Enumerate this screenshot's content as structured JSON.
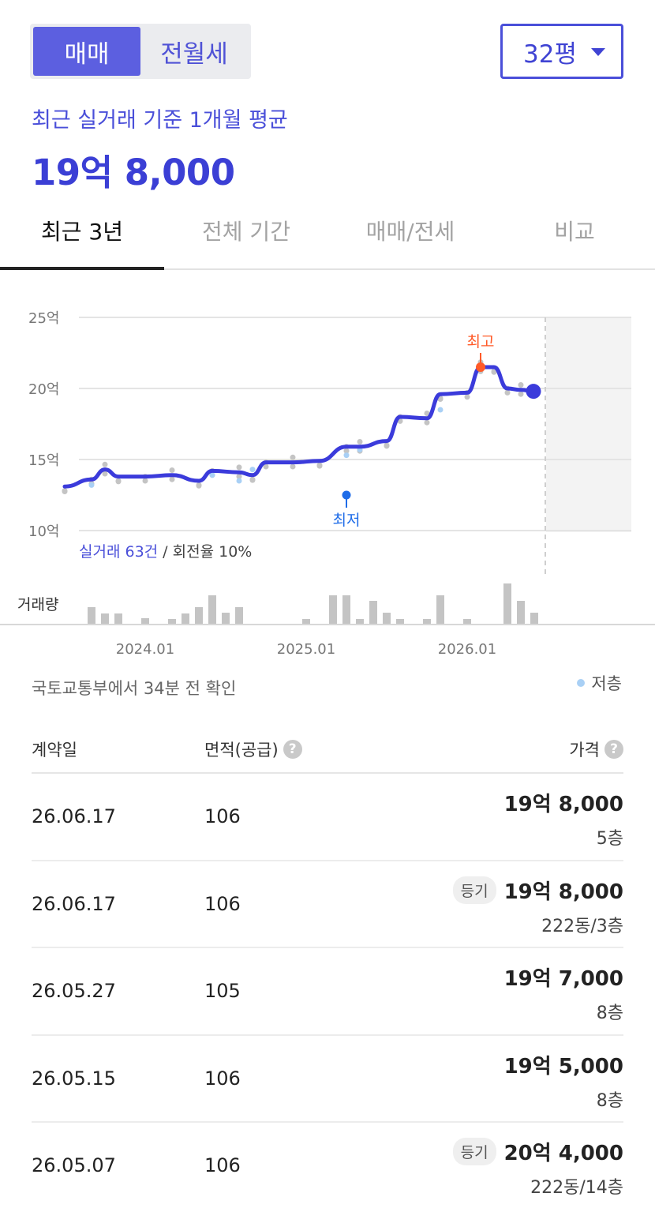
{
  "trade_type": {
    "active": "매매",
    "inactive": "전월세"
  },
  "size_select": {
    "value": "32평"
  },
  "summary": {
    "subtitle": "최근 실거래 기준 1개월 평균",
    "price": "19억 8,000"
  },
  "tabs": [
    {
      "label": "최근 3년",
      "active": true
    },
    {
      "label": "전체 기간",
      "active": false
    },
    {
      "label": "매매/전세",
      "active": false
    },
    {
      "label": "비교",
      "active": false
    }
  ],
  "colors": {
    "accent": "#4a4fd9",
    "line": "#3b3bdb",
    "high": "#ff5a28",
    "low": "#1e6ce8",
    "low_floor": "#a9d0f5",
    "scatter": "#c4c4c4",
    "volume": "#c4c4c4"
  },
  "chart_data": {
    "type": "line",
    "y_unit": "억",
    "ylim": [
      10,
      25
    ],
    "yticks": [
      "25억",
      "20억",
      "15억",
      "10억"
    ],
    "x_tick_labels": [
      "2024.01",
      "2025.01",
      "2026.01"
    ],
    "grid": true,
    "series": [
      {
        "values": [
          [
            "2023.07",
            13.1
          ],
          [
            "2023.09",
            13.6
          ],
          [
            "2023.10",
            14.3
          ],
          [
            "2023.11",
            13.8
          ],
          [
            "2024.01",
            13.8
          ],
          [
            "2024.03",
            13.9
          ],
          [
            "2024.05",
            13.5
          ],
          [
            "2024.06",
            14.2
          ],
          [
            "2024.08",
            14.1
          ],
          [
            "2024.09",
            13.9
          ],
          [
            "2024.10",
            14.8
          ],
          [
            "2024.12",
            14.8
          ],
          [
            "2025.02",
            14.9
          ],
          [
            "2025.04",
            15.9
          ],
          [
            "2025.05",
            15.9
          ],
          [
            "2025.07",
            16.3
          ],
          [
            "2025.08",
            18.0
          ],
          [
            "2025.10",
            17.9
          ],
          [
            "2025.11",
            19.6
          ],
          [
            "2026.01",
            19.7
          ],
          [
            "2026.02",
            21.5
          ],
          [
            "2026.03",
            21.5
          ],
          [
            "2026.04",
            20.0
          ],
          [
            "2026.05",
            19.9
          ],
          [
            "2026.06",
            19.8
          ]
        ]
      }
    ],
    "annotations": [
      {
        "label": "최고",
        "date": "2026.02",
        "value": 21.5
      },
      {
        "label": "최저",
        "date": "2025.04",
        "value": 12.5
      }
    ],
    "transactions_summary": {
      "highlight": "실거래 63건",
      "rest": " / 회전율 10%"
    },
    "volume_label": "거래량",
    "volume": [
      [
        "2023.09",
        22
      ],
      [
        "2023.10",
        14
      ],
      [
        "2023.11",
        14
      ],
      [
        "2024.01",
        8
      ],
      [
        "2024.03",
        7
      ],
      [
        "2024.04",
        14
      ],
      [
        "2024.05",
        22
      ],
      [
        "2024.06",
        37
      ],
      [
        "2024.07",
        15
      ],
      [
        "2024.08",
        22
      ],
      [
        "2025.01",
        7
      ],
      [
        "2025.03",
        37
      ],
      [
        "2025.04",
        37
      ],
      [
        "2025.05",
        7
      ],
      [
        "2025.06",
        30
      ],
      [
        "2025.07",
        15
      ],
      [
        "2025.08",
        7
      ],
      [
        "2025.10",
        7
      ],
      [
        "2025.11",
        37
      ],
      [
        "2026.01",
        7
      ],
      [
        "2026.04",
        52
      ],
      [
        "2026.05",
        30
      ],
      [
        "2026.06",
        15
      ]
    ]
  },
  "update_note": "국토교통부에서 34분 전 확인",
  "legend_low_floor": "저층",
  "table": {
    "headers": {
      "date": "계약일",
      "area": "면적(공급)",
      "price": "가격",
      "help_icon": "?"
    },
    "rows": [
      {
        "date": "26.06.17",
        "area": "106",
        "badge": "",
        "price": "19억 8,000",
        "floor": "5층"
      },
      {
        "date": "26.06.17",
        "area": "106",
        "badge": "등기",
        "price": "19억 8,000",
        "floor": "222동/3층"
      },
      {
        "date": "26.05.27",
        "area": "105",
        "badge": "",
        "price": "19억 7,000",
        "floor": "8층"
      },
      {
        "date": "26.05.15",
        "area": "106",
        "badge": "",
        "price": "19억 5,000",
        "floor": "8층"
      },
      {
        "date": "26.05.07",
        "area": "106",
        "badge": "등기",
        "price": "20억 4,000",
        "floor": "222동/14층"
      }
    ]
  }
}
